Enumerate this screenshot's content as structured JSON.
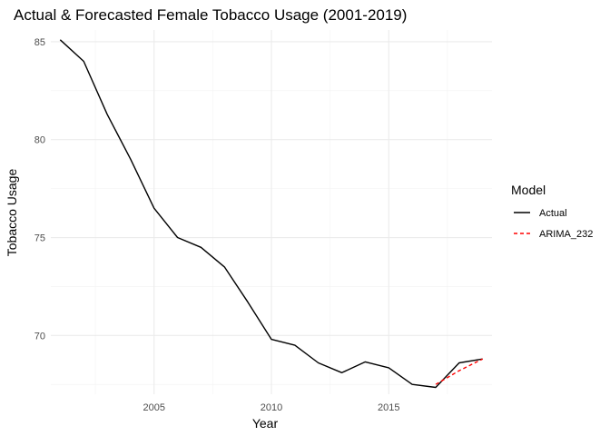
{
  "chart_data": {
    "type": "line",
    "title": "Actual & Forecasted Female Tobacco Usage (2001-2019)",
    "xlabel": "Year",
    "ylabel": "Tobacco Usage",
    "xlim": [
      2000.6,
      2019.4
    ],
    "ylim": [
      67.0,
      85.6
    ],
    "x_major_ticks": [
      2005,
      2010,
      2015
    ],
    "x_minor_ticks": [
      2002.5,
      2007.5,
      2012.5,
      2017.5
    ],
    "y_major_ticks": [
      70,
      75,
      80,
      85
    ],
    "y_minor_ticks": [
      67.5,
      72.5,
      77.5,
      82.5
    ],
    "x_tick_labels": [
      "2005",
      "2010",
      "2015"
    ],
    "y_tick_labels": [
      "70",
      "75",
      "80",
      "85"
    ],
    "grid": true,
    "legend": {
      "title": "Model",
      "position": "right",
      "entries": [
        {
          "name": "Actual",
          "color": "#000000",
          "dash": "solid"
        },
        {
          "name": "ARIMA_232",
          "color": "#ff0000",
          "dash": "dashed"
        }
      ]
    },
    "series": [
      {
        "name": "Actual",
        "color": "#000000",
        "dash": "solid",
        "x": [
          2001,
          2002,
          2003,
          2004,
          2005,
          2006,
          2007,
          2008,
          2009,
          2010,
          2011,
          2012,
          2013,
          2014,
          2015,
          2016,
          2017,
          2018,
          2019
        ],
        "y": [
          85.1,
          84.0,
          81.3,
          79.0,
          76.5,
          75.0,
          74.5,
          73.5,
          71.7,
          69.8,
          69.5,
          68.6,
          68.1,
          68.65,
          68.35,
          67.5,
          67.35,
          68.6,
          68.8
        ]
      },
      {
        "name": "ARIMA_232",
        "color": "#ff0000",
        "dash": "dashed",
        "x": [
          2017,
          2018,
          2019
        ],
        "y": [
          67.5,
          68.2,
          68.8
        ]
      }
    ]
  }
}
